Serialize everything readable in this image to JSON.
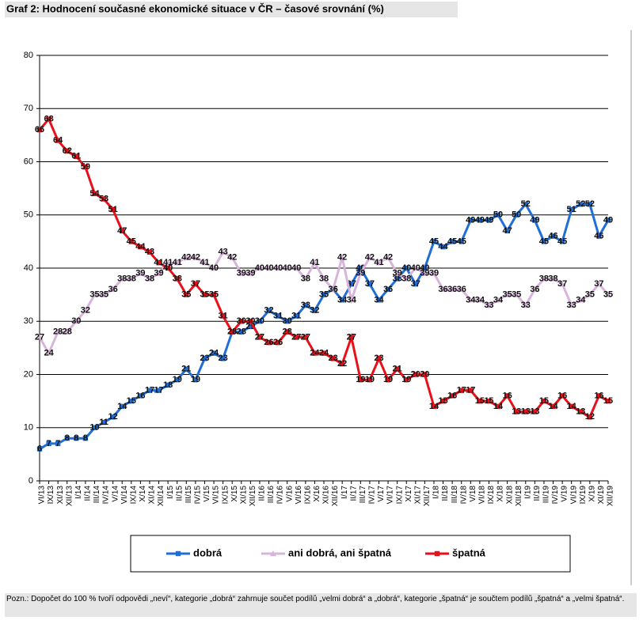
{
  "chart_data": {
    "type": "line",
    "title": "Graf 2: Hodnocení současné ekonomické situace v ČR – časové srovnání (%)",
    "note": "Pozn.: Dopočet do 100 % tvoří odpovědi „neví“, kategorie „dobrá“ zahrnuje součet podílů „velmi dobrá“ a „dobrá“, kategorie „špatná“ je součtem podílů „špatná“ a „velmi špatná“.",
    "categories": [
      "VI/13",
      "IX/13",
      "XI/13",
      "XII/13",
      "I/14",
      "II/14",
      "III/14",
      "IV/14",
      "V/14",
      "VI/14",
      "IX/14",
      "X/14",
      "XI/14",
      "XII/14",
      "I/15",
      "II/15",
      "III/15",
      "IV/15",
      "V/15",
      "VI/15",
      "IX/15",
      "X/15",
      "XI/15",
      "XII/15",
      "II/16",
      "III/16",
      "IV/16",
      "V/16",
      "VI/16",
      "IX/16",
      "X/16",
      "XI/16",
      "XII/16",
      "I/17",
      "II/17",
      "III/17",
      "IV/17",
      "V/17",
      "VI/17",
      "IX/17",
      "X/17",
      "XI/17",
      "XII/17",
      "I/18",
      "II/18",
      "III/18",
      "IV/18",
      "V/18",
      "VI/18",
      "IX/18",
      "X/18",
      "XI/18",
      "XII/18",
      "I/19",
      "II/19",
      "III/19",
      "IV/19",
      "V/19",
      "VI/19",
      "IX/19",
      "X/19",
      "XI/19",
      "XII/19"
    ],
    "series": [
      {
        "name": "dobrá",
        "color": "#1f6fd6",
        "marker": "square",
        "values": [
          6,
          7,
          7,
          8,
          8,
          8,
          10,
          11,
          12,
          14,
          15,
          16,
          17,
          17,
          18,
          19,
          21,
          19,
          23,
          24,
          23,
          28,
          28,
          29,
          30,
          32,
          31,
          30,
          31,
          33,
          32,
          35,
          36,
          34,
          37,
          40,
          37,
          34,
          36,
          38,
          40,
          37,
          40,
          45,
          44,
          45,
          45,
          49,
          49,
          49,
          50,
          47,
          50,
          52,
          49,
          45,
          46,
          45,
          51,
          52,
          52,
          46,
          49
        ]
      },
      {
        "name": "ani dobrá, ani špatná",
        "color": "#d8b4dc",
        "marker": "triangle",
        "values": [
          27,
          24,
          28,
          28,
          30,
          32,
          35,
          35,
          36,
          38,
          38,
          39,
          38,
          39,
          41,
          41,
          42,
          42,
          41,
          40,
          43,
          42,
          39,
          39,
          40,
          40,
          40,
          40,
          40,
          38,
          41,
          38,
          36,
          42,
          34,
          39,
          42,
          41,
          42,
          39,
          38,
          40,
          39,
          39,
          36,
          36,
          36,
          34,
          34,
          33,
          34,
          35,
          35,
          33,
          36,
          38,
          38,
          37,
          33,
          34,
          35,
          37,
          35
        ]
      },
      {
        "name": "špatná",
        "color": "#e8101a",
        "marker": "square",
        "values": [
          66,
          68,
          64,
          62,
          61,
          59,
          54,
          53,
          51,
          47,
          45,
          44,
          43,
          41,
          40,
          38,
          35,
          37,
          35,
          35,
          31,
          28,
          30,
          30,
          27,
          26,
          26,
          28,
          27,
          27,
          24,
          24,
          23,
          22,
          27,
          19,
          19,
          23,
          19,
          21,
          19,
          20,
          20,
          14,
          15,
          16,
          17,
          17,
          15,
          15,
          14,
          16,
          13,
          13,
          13,
          15,
          14,
          16,
          14,
          13,
          12,
          16,
          15
        ]
      }
    ],
    "ylim": [
      0,
      80
    ],
    "yticks": [
      0,
      10,
      20,
      30,
      40,
      50,
      60,
      70,
      80
    ],
    "grid": true,
    "legend": "bottom"
  }
}
